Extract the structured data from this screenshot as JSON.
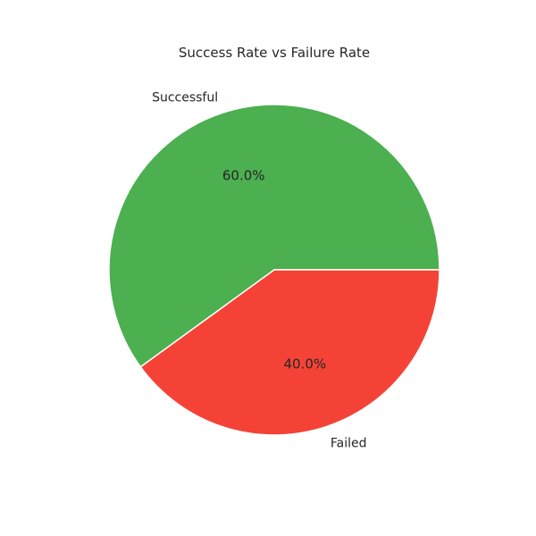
{
  "chart_data": {
    "type": "pie",
    "title": "Success Rate vs Failure Rate",
    "labels": [
      "Successful",
      "Failed"
    ],
    "values": [
      60,
      40
    ],
    "percent_labels": [
      "60.0%",
      "40.0%"
    ],
    "colors": [
      "#4caf50",
      "#f44336"
    ],
    "start_angle_deg": 0,
    "direction": "counterclockwise"
  }
}
